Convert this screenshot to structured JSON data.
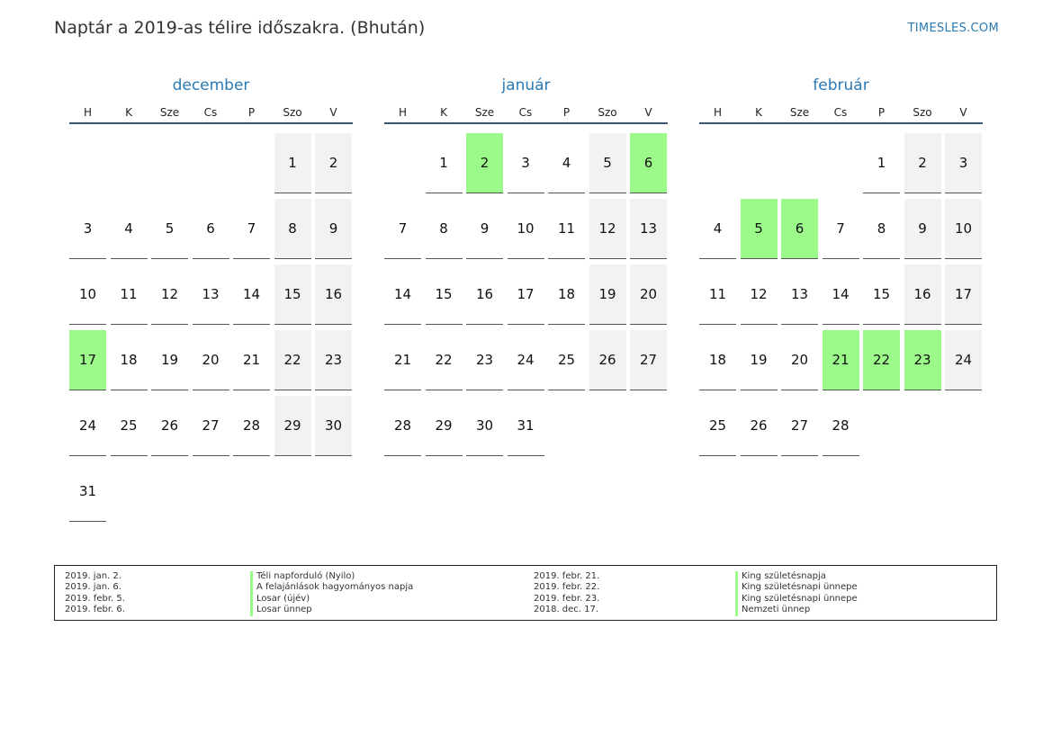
{
  "header": {
    "title": "Naptár a 2019-as télire időszakra. (Bhután)",
    "site": "TIMESLES.COM"
  },
  "weekdays": [
    "H",
    "K",
    "Sze",
    "Cs",
    "P",
    "Szo",
    "V"
  ],
  "colors": {
    "accent": "#2a7ab5",
    "holiday": "#9cfa8a",
    "weekend": "#f2f2f2"
  },
  "months": [
    {
      "name": "december",
      "offset": 5,
      "days": 31,
      "holidays": [
        17
      ]
    },
    {
      "name": "január",
      "offset": 1,
      "days": 31,
      "holidays": [
        2,
        6
      ]
    },
    {
      "name": "február",
      "offset": 4,
      "days": 28,
      "holidays": [
        5,
        6,
        21,
        22,
        23
      ]
    }
  ],
  "legend": [
    {
      "date": "2019. jan. 2.",
      "name": "Téli napforduló (Nyilo)"
    },
    {
      "date": "2019. jan. 6.",
      "name": "A felajánlások hagyományos napja"
    },
    {
      "date": "2019. febr. 5.",
      "name": "Losar (újév)"
    },
    {
      "date": "2019. febr. 6.",
      "name": "Losar ünnep"
    },
    {
      "date": "2019. febr. 21.",
      "name": "King születésnapja"
    },
    {
      "date": "2019. febr. 22.",
      "name": "King születésnapi ünnepe"
    },
    {
      "date": "2019. febr. 23.",
      "name": "King születésnapi ünnepe"
    },
    {
      "date": "2018. dec. 17.",
      "name": "Nemzeti ünnep"
    }
  ]
}
